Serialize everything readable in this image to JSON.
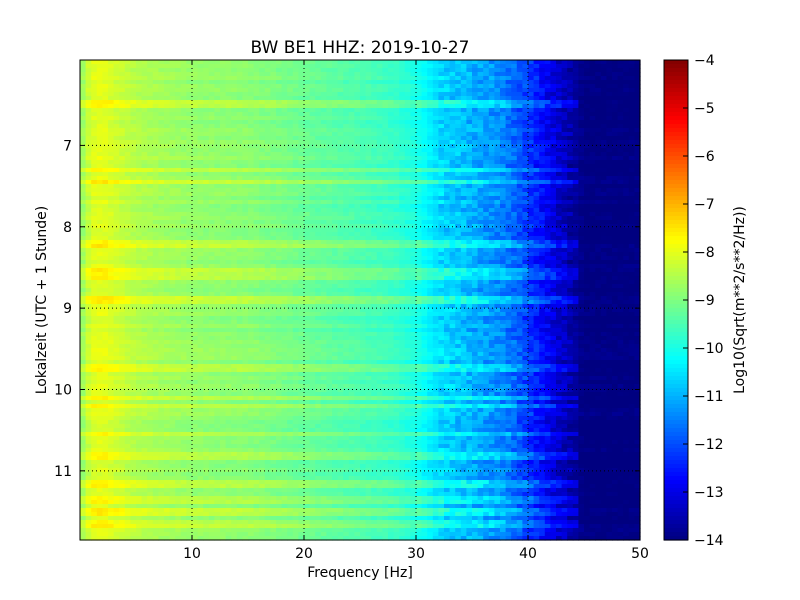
{
  "chart_data": {
    "type": "heatmap",
    "title": "BW BE1 HHZ: 2019-10-27",
    "xlabel": "Frequency [Hz]",
    "ylabel": "Lokalzeit (UTC + 1 Stunde)",
    "xlim": [
      0,
      50
    ],
    "ylim": [
      5.95,
      11.85
    ],
    "y_inverted": true,
    "x_ticks": [
      10,
      20,
      30,
      40,
      50
    ],
    "y_ticks": [
      7,
      8,
      9,
      10,
      11
    ],
    "grid": true,
    "colormap": "jet",
    "colorbar": {
      "label": "Log10(Sqrt(m**2/s**2/Hz))",
      "range": [
        -14,
        -4
      ],
      "ticks": [
        -4,
        -5,
        -6,
        -7,
        -8,
        -9,
        -10,
        -11,
        -12,
        -13,
        -14
      ]
    },
    "frequency_profile": {
      "frequency_hz": [
        0,
        1,
        2,
        3,
        5,
        8,
        10,
        15,
        20,
        25,
        28,
        30,
        32,
        35,
        38,
        40,
        42,
        45,
        50
      ],
      "log10_amplitude": [
        -8.9,
        -8.1,
        -8.0,
        -8.2,
        -8.5,
        -8.7,
        -8.8,
        -8.9,
        -9.2,
        -9.5,
        -9.7,
        -10.0,
        -10.6,
        -11.0,
        -11.5,
        -12.2,
        -13.0,
        -14.0,
        -14.0
      ]
    },
    "bright_bands_time": [
      6.5,
      7.3,
      7.45,
      8.2,
      8.55,
      8.6,
      8.9,
      9.75,
      10.1,
      10.2,
      10.55,
      10.8,
      11.15,
      11.35,
      11.5,
      11.65
    ]
  }
}
